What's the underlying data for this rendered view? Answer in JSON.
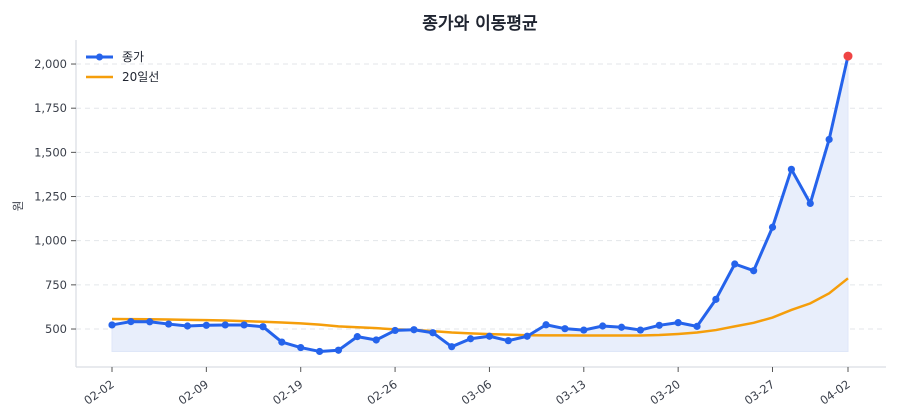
{
  "chart_data": {
    "type": "line",
    "title": "종가와 이동평균",
    "xlabel": "",
    "ylabel": "원",
    "ylim": [
      285,
      2136
    ],
    "yticks": [
      500,
      750,
      1000,
      1250,
      1500,
      1750,
      2000
    ],
    "ytick_labels": [
      "500",
      "750",
      "1,000",
      "1,250",
      "1,500",
      "1,750",
      "2,000"
    ],
    "grid": "horizontal dashed",
    "legend": "top-left",
    "x": [
      "02-02",
      "02-03",
      "02-04",
      "02-05",
      "02-06",
      "02-09",
      "02-10",
      "02-11",
      "02-12",
      "02-13",
      "02-19",
      "02-20",
      "02-23",
      "02-24",
      "02-25",
      "02-26",
      "02-27",
      "03-03",
      "03-04",
      "03-05",
      "03-06",
      "03-09",
      "03-10",
      "03-11",
      "03-12",
      "03-13",
      "03-16",
      "03-17",
      "03-18",
      "03-19",
      "03-20",
      "03-23",
      "03-24",
      "03-25",
      "03-26",
      "03-27",
      "03-30",
      "03-31",
      "04-01",
      "04-02"
    ],
    "xtick_labels": [
      "02-02",
      "02-09",
      "02-19",
      "02-26",
      "03-06",
      "03-13",
      "03-20",
      "03-27",
      "04-02"
    ],
    "series": [
      {
        "name": "종가",
        "color": "#2563eb",
        "marker": "circle",
        "values": [
          523,
          542,
          541,
          528,
          517,
          521,
          523,
          523,
          513,
          426,
          395,
          373,
          380,
          457,
          438,
          492,
          496,
          479,
          400,
          445,
          459,
          434,
          459,
          524,
          502,
          494,
          517,
          510,
          494,
          521,
          536,
          515,
          668,
          868,
          830,
          1076,
          1404,
          1211,
          1573,
          2045
        ]
      },
      {
        "name": "20일선",
        "color": "#f59e0b",
        "values": [
          557,
          556,
          555,
          554,
          552,
          550,
          548,
          545,
          541,
          537,
          532,
          525,
          515,
          510,
          505,
          498,
          495,
          488,
          480,
          475,
          471,
          468,
          465,
          464,
          464,
          463,
          463,
          463,
          463,
          466,
          472,
          480,
          494,
          515,
          535,
          565,
          608,
          645,
          702,
          787
        ]
      }
    ],
    "highlight_last_color": "#ef4444",
    "fill_color": "#e8eefb"
  }
}
